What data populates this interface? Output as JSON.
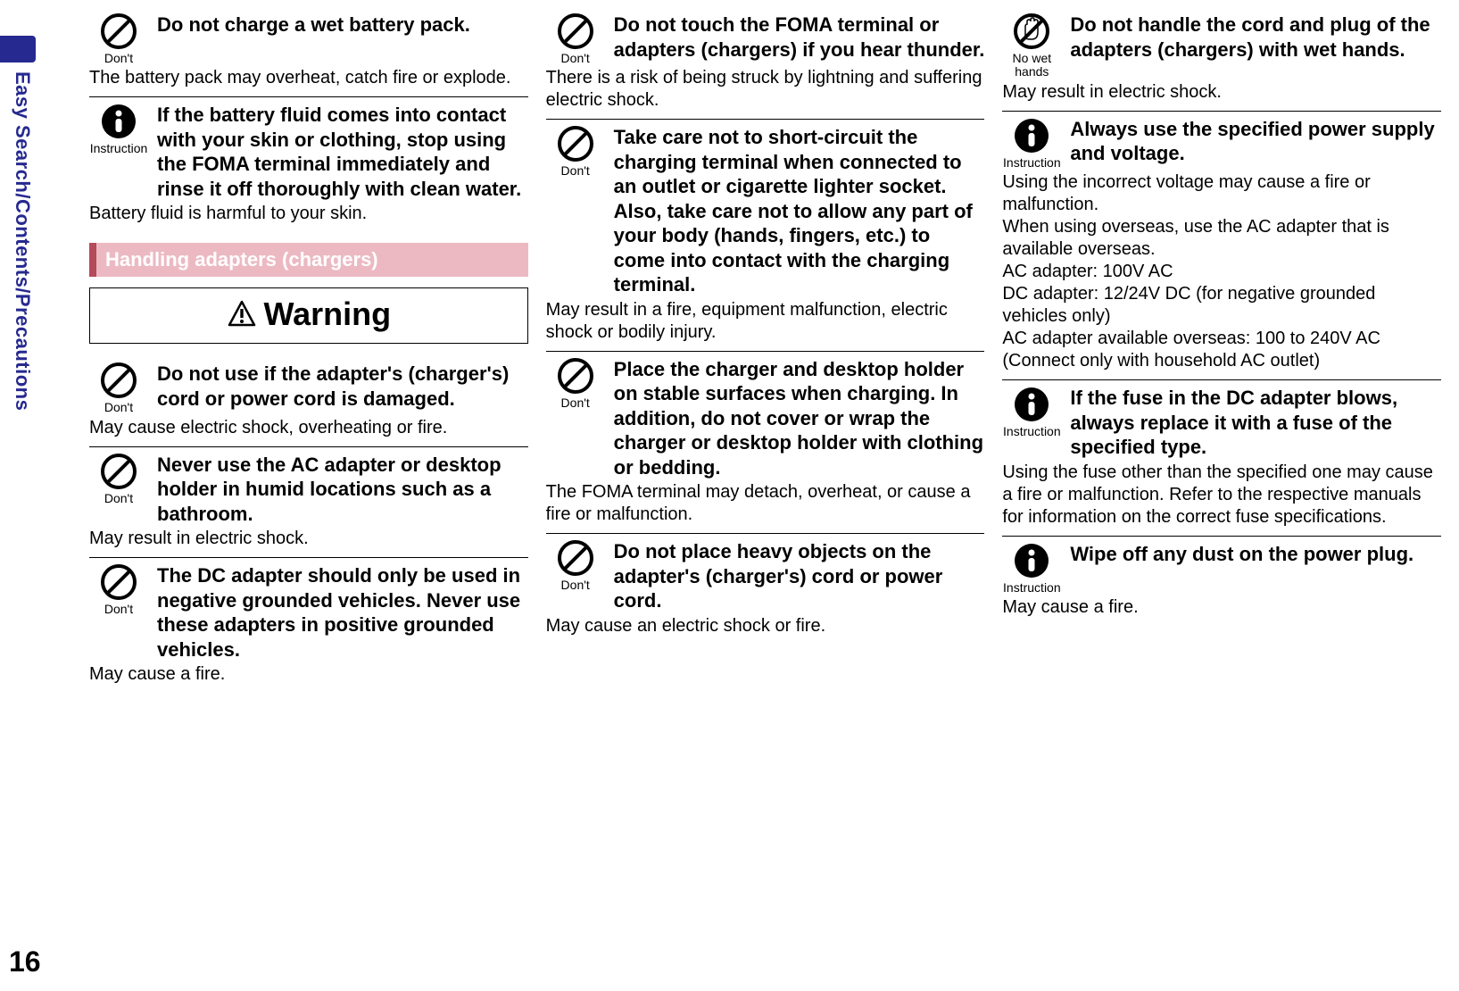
{
  "side_label": "Easy Search/Contents/Precautions",
  "page_number": "16",
  "icon_labels": {
    "dont": "Don't",
    "instruction": "Instruction",
    "no_wet_hands": "No wet\nhands"
  },
  "section_heading": "Handling adapters (chargers)",
  "warning_label": "Warning",
  "col1": [
    {
      "icon": "dont",
      "heading": "Do not charge a wet battery pack.",
      "body": "The battery pack may overheat, catch fire or explode."
    },
    {
      "icon": "instruction",
      "heading": "If the battery fluid comes into contact with your skin or clothing, stop using the FOMA terminal immediately and rinse it off thoroughly with clean water.",
      "body": "Battery fluid is harmful to your skin."
    }
  ],
  "col1b": [
    {
      "icon": "dont",
      "heading": "Do not use if the adapter's (charger's) cord or power cord is damaged.",
      "body": "May cause electric shock, overheating or fire."
    },
    {
      "icon": "dont",
      "heading": "Never use the AC adapter or desktop holder in humid locations such as a bathroom.",
      "body": "May result in electric shock."
    },
    {
      "icon": "dont",
      "heading": "The DC adapter should only be used in negative grounded vehicles. Never use these adapters in positive grounded vehicles.",
      "body": "May cause a fire."
    }
  ],
  "col2": [
    {
      "icon": "dont",
      "heading": "Do not touch the FOMA terminal or adapters (chargers) if you hear thunder.",
      "body": "There is a risk of being struck by lightning and suffering electric shock."
    },
    {
      "icon": "dont",
      "heading": "Take care not to short-circuit the charging terminal when connected to an outlet or cigarette lighter socket. Also, take care not to allow any part of your body (hands, fingers, etc.) to come into contact with the charging terminal.",
      "body": "May result in a fire, equipment malfunction, electric shock or bodily injury."
    },
    {
      "icon": "dont",
      "heading": "Place the charger and desktop holder on stable surfaces when charging. In addition, do not cover or wrap the charger or desktop holder with clothing or bedding.",
      "body": "The FOMA terminal may detach, overheat, or cause a fire or malfunction."
    },
    {
      "icon": "dont",
      "heading": "Do not place heavy objects on the adapter's (charger's) cord or power cord.",
      "body": "May cause an electric shock or fire."
    }
  ],
  "col3": [
    {
      "icon": "no_wet_hands",
      "heading": "Do not handle the cord and plug of the adapters (chargers) with wet hands.",
      "body": "May result in electric shock."
    },
    {
      "icon": "instruction",
      "heading": "Always use the specified power supply and voltage.",
      "body": "Using the incorrect voltage may cause a fire or malfunction.\nWhen using overseas, use the AC adapter that is available overseas.\nAC adapter: 100V AC\nDC adapter: 12/24V DC (for negative grounded vehicles only)\nAC adapter available overseas: 100 to 240V AC (Connect only with household AC outlet)"
    },
    {
      "icon": "instruction",
      "heading": "If the fuse in the DC adapter blows, always replace it with a fuse of the specified type.",
      "body": "Using the fuse other than the specified one may cause a fire or malfunction. Refer to the respective manuals for information on the correct fuse specifications."
    },
    {
      "icon": "instruction",
      "heading": "Wipe off any dust on the power plug.",
      "body": "May cause a fire."
    }
  ]
}
